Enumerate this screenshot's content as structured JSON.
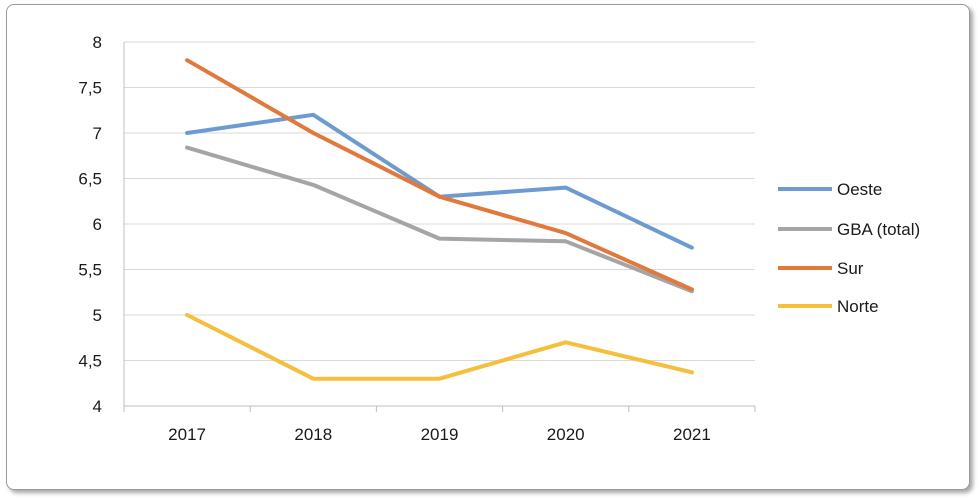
{
  "chart_data": {
    "type": "line",
    "x": [
      "2017",
      "2018",
      "2019",
      "2020",
      "2021"
    ],
    "ylim": [
      4,
      8
    ],
    "yticks": [
      "8",
      "7,5",
      "7",
      "6,5",
      "6",
      "5,5",
      "5",
      "4,5",
      "4"
    ],
    "grid": true,
    "legend_position": "right",
    "series": [
      {
        "name": "Oeste",
        "color": "#6d9bd1",
        "values": [
          7.0,
          7.2,
          6.3,
          6.4,
          5.74
        ]
      },
      {
        "name": "GBA (total)",
        "color": "#a5a5a5",
        "values": [
          6.84,
          6.43,
          5.84,
          5.81,
          5.26
        ]
      },
      {
        "name": "Sur",
        "color": "#e2783a",
        "values": [
          7.8,
          7.0,
          6.3,
          5.9,
          5.28
        ]
      },
      {
        "name": "Norte",
        "color": "#f5be3b",
        "values": [
          5.0,
          4.3,
          4.3,
          4.7,
          4.37
        ]
      }
    ]
  }
}
